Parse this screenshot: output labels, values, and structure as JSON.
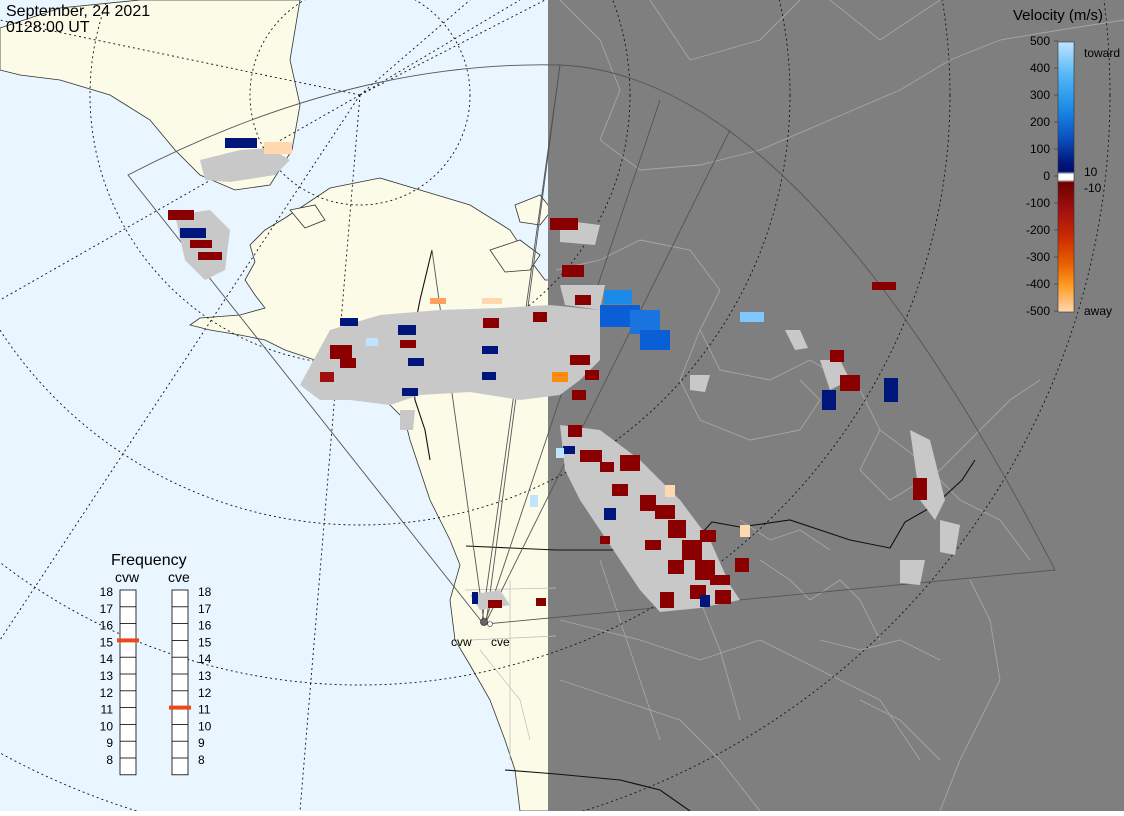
{
  "header": {
    "date": "September, 24 2021",
    "time": "0128:00 UT"
  },
  "colors": {
    "ocean": "#e9f5ff",
    "land_day": "#fbfbe8",
    "night": "#7f7f7f",
    "ground_scatter": "#c8c8c8",
    "coast_day": "#333333",
    "coast_night": "#a6a6a6"
  },
  "legend": {
    "title": "Velocity (m/s)",
    "ticks": [
      "500",
      "400",
      "300",
      "200",
      "100",
      "0",
      "-100",
      "-200",
      "-300",
      "-400",
      "-500"
    ],
    "near_zero": [
      "10",
      "-10"
    ],
    "toward_label": "toward",
    "away_label": "away"
  },
  "frequency": {
    "title": "Frequency",
    "ticks": [
      "18",
      "17",
      "16",
      "15",
      "14",
      "13",
      "12",
      "11",
      "10",
      "9",
      "8"
    ],
    "radars": [
      {
        "code": "cvw",
        "value_mhz": 15
      },
      {
        "code": "cve",
        "value_mhz": 11
      }
    ],
    "marker_color": "#e84a1a"
  },
  "sites": [
    {
      "code": "cvw"
    },
    {
      "code": "cve"
    }
  ]
}
